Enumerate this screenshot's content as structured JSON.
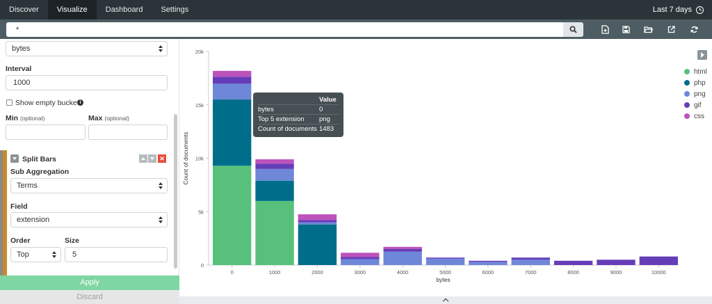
{
  "nav": {
    "items": [
      {
        "label": "Discover",
        "active": false
      },
      {
        "label": "Visualize",
        "active": true
      },
      {
        "label": "Dashboard",
        "active": false
      },
      {
        "label": "Settings",
        "active": false
      }
    ],
    "time_range": "Last 7 days"
  },
  "search": {
    "query": "*"
  },
  "toolbar": {
    "icons": [
      "new-visualization-icon",
      "save-icon",
      "open-icon",
      "share-icon",
      "refresh-icon"
    ]
  },
  "sidebar": {
    "field_top_value": "bytes",
    "interval_label": "Interval",
    "interval_value": "1000",
    "show_empty_label": "Show empty buckets",
    "min_label": "Min",
    "max_label": "Max",
    "optional": "(optional)",
    "split_bars_label": "Split Bars",
    "sub_agg_label": "Sub Aggregation",
    "sub_agg_value": "Terms",
    "field_label": "Field",
    "field_value": "extension",
    "order_label": "Order",
    "order_value": "Top",
    "size_label": "Size",
    "size_value": "5",
    "apply_label": "Apply",
    "discard_label": "Discard"
  },
  "tooltip": {
    "header": "Value",
    "rows": [
      {
        "key": "bytes",
        "value": "0"
      },
      {
        "key": "Top 5 extension",
        "value": "png"
      },
      {
        "key": "Count of documents",
        "value": "1483"
      }
    ]
  },
  "chart_data": {
    "type": "bar",
    "stacked": true,
    "xlabel": "bytes",
    "ylabel": "Count of documents",
    "ylim": [
      0,
      20000
    ],
    "yticks": [
      "0",
      "5k",
      "10k",
      "15k",
      "20k"
    ],
    "categories": [
      "0",
      "1000",
      "2000",
      "3000",
      "4000",
      "5000",
      "6000",
      "7000",
      "8000",
      "9000",
      "10000"
    ],
    "legend_position": "right",
    "series": [
      {
        "name": "html",
        "color": "#57c17b",
        "values": [
          9300,
          6000,
          0,
          0,
          0,
          0,
          0,
          0,
          0,
          0,
          0
        ]
      },
      {
        "name": "php",
        "color": "#006e8a",
        "values": [
          6200,
          1900,
          3800,
          0,
          0,
          0,
          0,
          0,
          0,
          0,
          0
        ]
      },
      {
        "name": "png",
        "color": "#6f87d8",
        "values": [
          1483,
          1100,
          200,
          550,
          1250,
          600,
          300,
          500,
          0,
          0,
          0
        ]
      },
      {
        "name": "gif",
        "color": "#663db8",
        "values": [
          650,
          500,
          200,
          200,
          250,
          100,
          100,
          200,
          400,
          500,
          800
        ]
      },
      {
        "name": "css",
        "color": "#bc52bc",
        "values": [
          550,
          400,
          550,
          400,
          200,
          0,
          0,
          0,
          0,
          0,
          0
        ]
      }
    ]
  }
}
